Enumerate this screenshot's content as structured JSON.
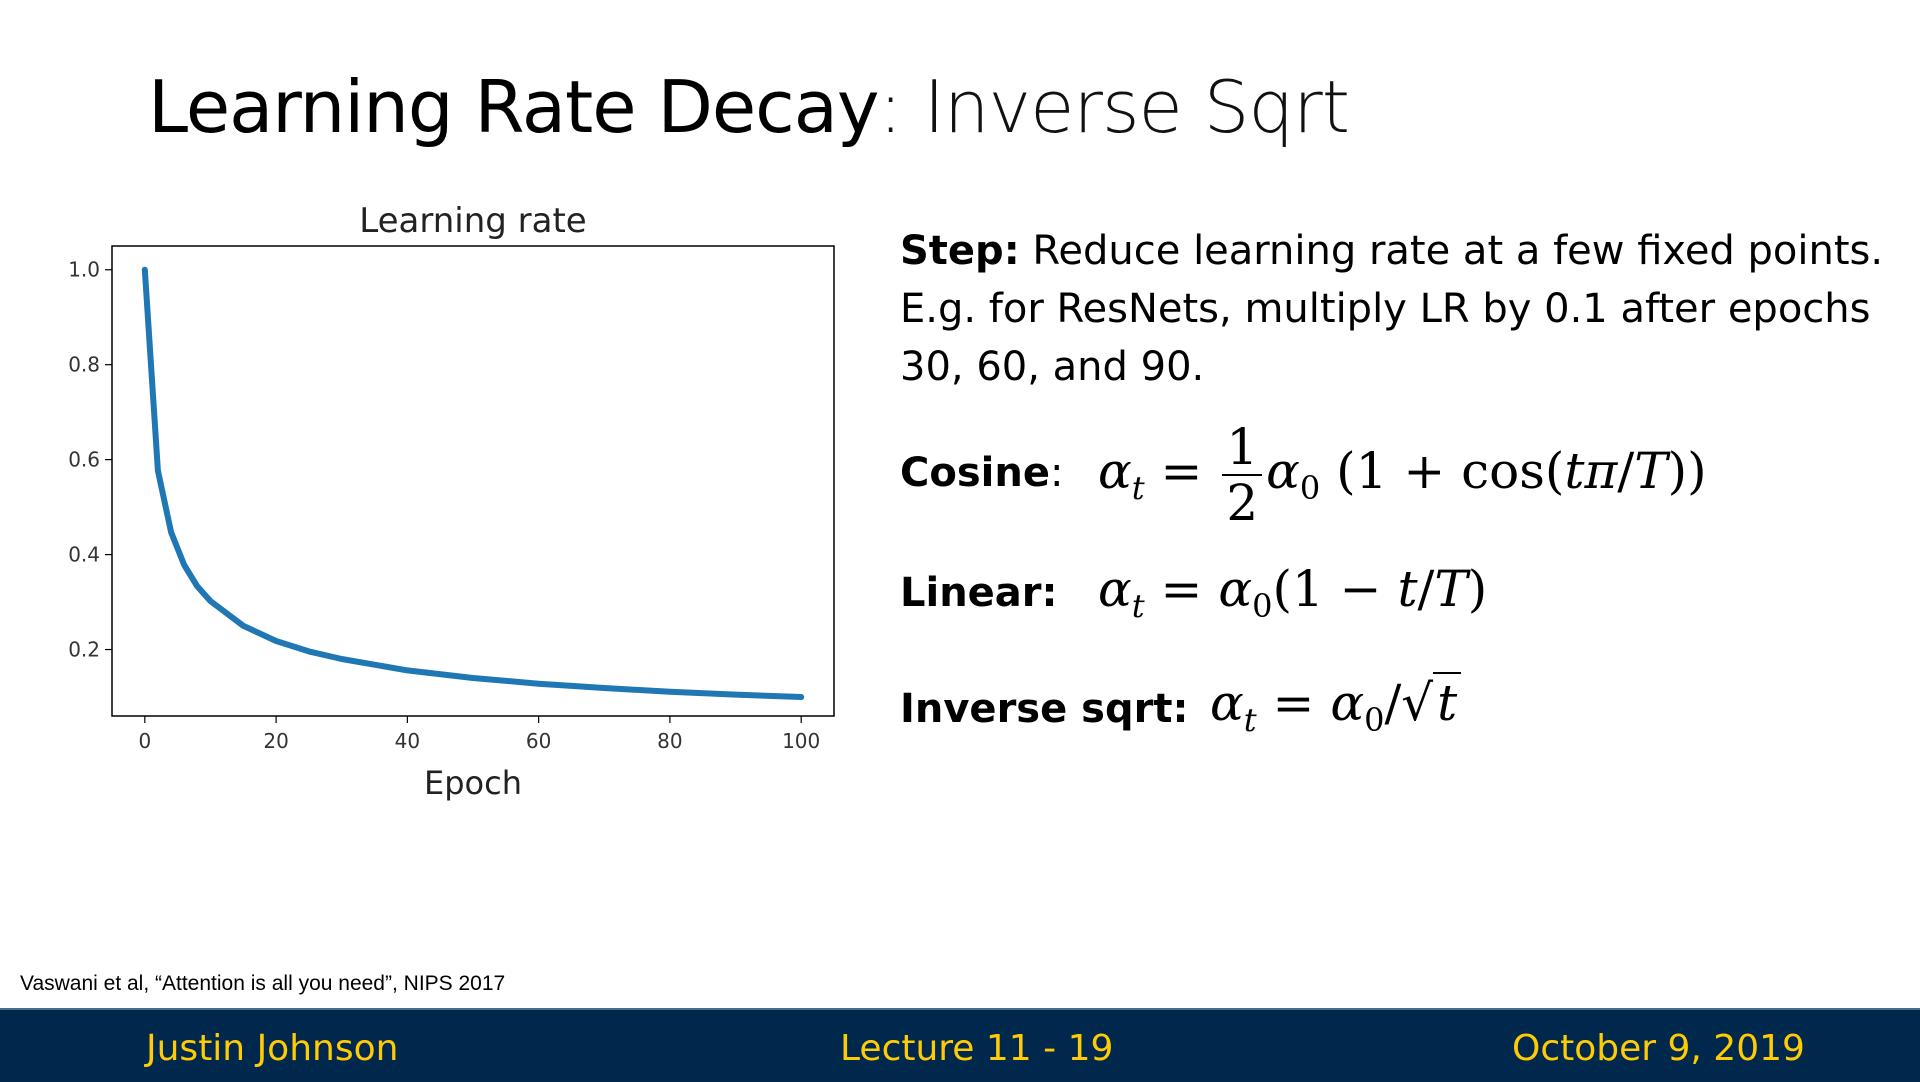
{
  "slide": {
    "title_bold": "Learning Rate Decay",
    "title_rest": ": Inverse Sqrt",
    "step_label": "Step:",
    "step_text": " Reduce learning rate at a few fixed points. E.g. for ResNets, multiply LR by 0.1 after epochs 30, 60, and 90.",
    "cosine_label": "Cosine",
    "cosine_colon": ":",
    "linear_label": "Linear:",
    "inverse_label": "Inverse sqrt:",
    "citation": "Vaswani et al, “Attention is all you need”, NIPS 2017"
  },
  "footer": {
    "left": "Justin Johnson",
    "center": "Lecture 11 - 19",
    "right": "October 9, 2019"
  },
  "chart_data": {
    "type": "line",
    "title": "Learning rate",
    "xlabel": "Epoch",
    "ylabel": "",
    "xlim": [
      -5,
      105
    ],
    "ylim": [
      0.06,
      1.05
    ],
    "xticks": [
      0,
      20,
      40,
      60,
      80,
      100
    ],
    "yticks": [
      0.2,
      0.4,
      0.6,
      0.8,
      1.0
    ],
    "xtick_labels": [
      "0",
      "20",
      "40",
      "60",
      "80",
      "100"
    ],
    "ytick_labels": [
      "0.2",
      "0.4",
      "0.6",
      "0.8",
      "1.0"
    ],
    "series": [
      {
        "color": "#1f77b4",
        "x": [
          0,
          2,
          4,
          6,
          8,
          10,
          15,
          20,
          25,
          30,
          40,
          50,
          60,
          70,
          80,
          90,
          100
        ],
        "y": [
          1.0,
          0.577,
          0.447,
          0.378,
          0.333,
          0.302,
          0.25,
          0.218,
          0.196,
          0.18,
          0.156,
          0.14,
          0.128,
          0.119,
          0.111,
          0.105,
          0.1
        ]
      }
    ]
  }
}
